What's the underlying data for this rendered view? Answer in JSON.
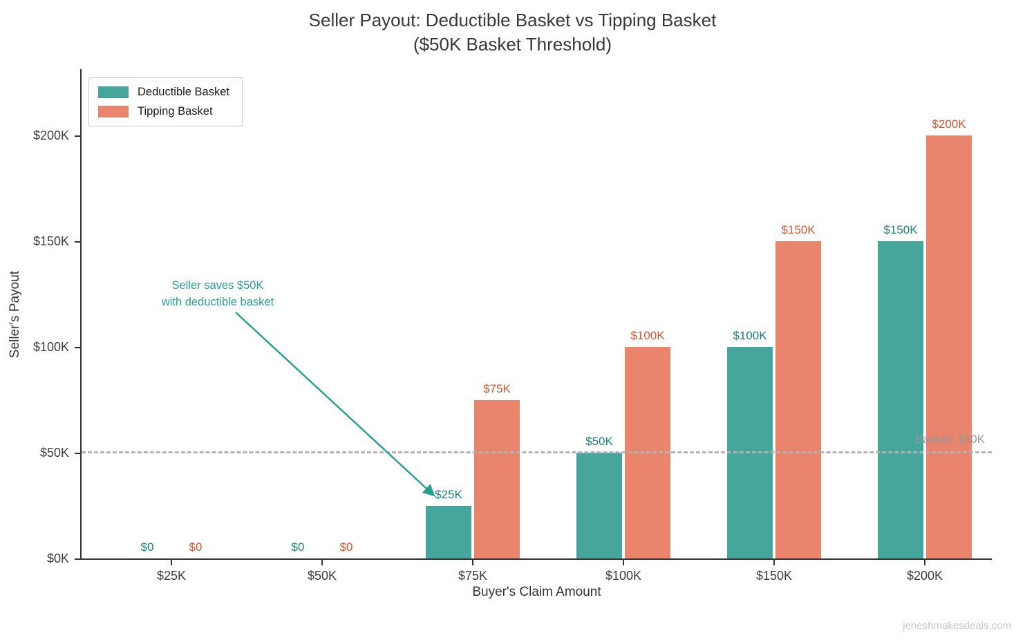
{
  "title": {
    "line1": "Seller Payout: Deductible Basket vs Tipping Basket",
    "line2": "($50K Basket Threshold)"
  },
  "watermark": "jeneshmakesdeals.com",
  "chart_data": {
    "type": "bar",
    "title": "Seller Payout: Deductible Basket vs Tipping Basket ($50K Basket Threshold)",
    "xlabel": "Buyer's Claim Amount",
    "ylabel": "Seller's Payout",
    "categories": [
      "$25K",
      "$50K",
      "$75K",
      "$100K",
      "$150K",
      "$200K"
    ],
    "series": [
      {
        "name": "Deductible Basket",
        "color": "#47a69b",
        "label_color": "#1d8376",
        "values": [
          0,
          0,
          25,
          50,
          100,
          150
        ],
        "labels": [
          "$0",
          "$0",
          "$25K",
          "$50K",
          "$100K",
          "$150K"
        ]
      },
      {
        "name": "Tipping Basket",
        "color": "#e9856c",
        "label_color": "#d3572f",
        "values": [
          0,
          0,
          75,
          100,
          150,
          200
        ],
        "labels": [
          "$0",
          "$0",
          "$75K",
          "$100K",
          "$150K",
          "$200K"
        ]
      }
    ],
    "ylim": [
      0,
      230
    ],
    "yticks": [
      0,
      50,
      100,
      150,
      200
    ],
    "ytick_labels": [
      "$0K",
      "$50K",
      "$100K",
      "$150K",
      "$200K"
    ],
    "grid": false,
    "legend_position": "top-left",
    "threshold": {
      "value": 50,
      "label": "Basket: $50K",
      "color": "#b3b3b3",
      "label_color": "#969696"
    },
    "annotation": {
      "line1": "Seller saves $50K",
      "line2": "with deductible basket",
      "color": "#2aa094",
      "arrow_from": [
        341,
        452
      ],
      "arrow_to": [
        627,
        716
      ]
    }
  }
}
